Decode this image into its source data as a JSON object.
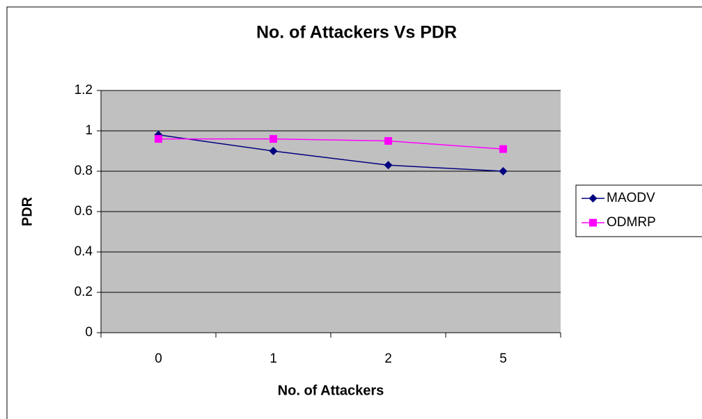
{
  "chart_data": {
    "type": "line",
    "title": "No. of Attackers Vs PDR",
    "x_label": "No. of Attackers",
    "y_label": "PDR",
    "categories": [
      "0",
      "1",
      "2",
      "5"
    ],
    "series": [
      {
        "name": "MAODV",
        "color": "#000080",
        "marker": "diamond",
        "values": [
          0.98,
          0.9,
          0.83,
          0.8
        ]
      },
      {
        "name": "ODMRP",
        "color": "#ff00ff",
        "marker": "square",
        "values": [
          0.96,
          0.96,
          0.95,
          0.91
        ]
      }
    ],
    "ylim": [
      0,
      1.2
    ],
    "yticks": [
      0,
      0.2,
      0.4,
      0.6,
      0.8,
      1,
      1.2
    ],
    "grid": true,
    "legend": "right",
    "plot_background": "#c0c0c0"
  }
}
